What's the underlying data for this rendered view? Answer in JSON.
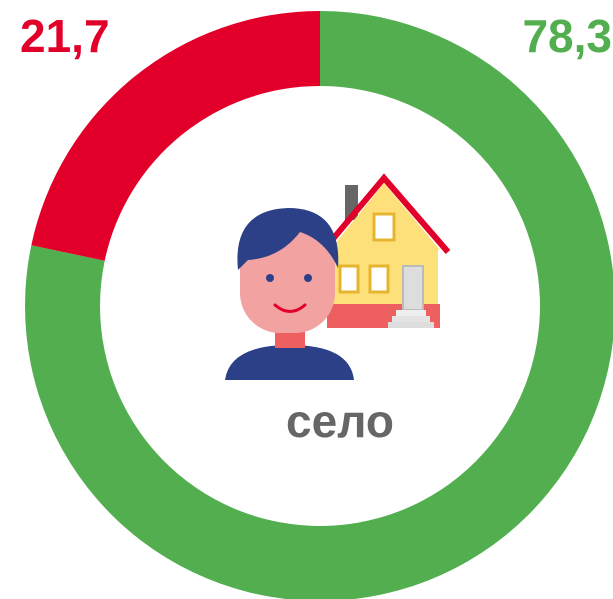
{
  "chart_data": {
    "type": "donut",
    "values": [
      78.3,
      21.7
    ],
    "value_labels": [
      "78,3",
      "21,7"
    ],
    "colors": [
      "#52ae4f",
      "#e2002a"
    ],
    "center_label": "село"
  }
}
